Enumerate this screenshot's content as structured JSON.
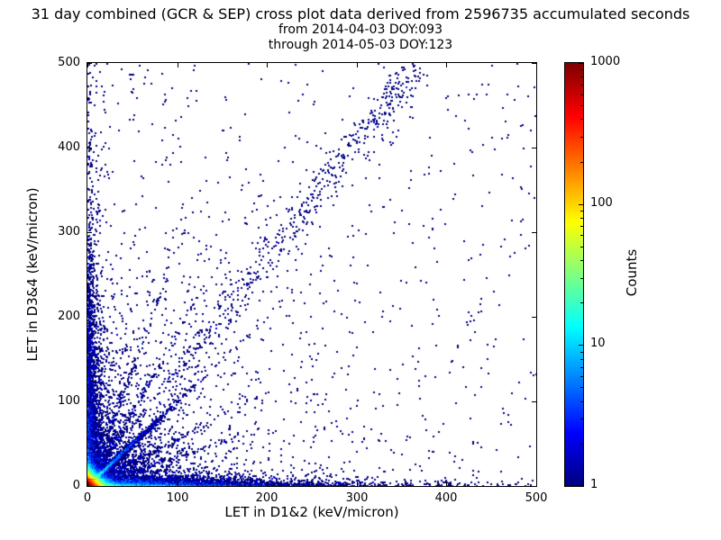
{
  "chart_data": {
    "type": "scatter",
    "title": "31 day combined (GCR & SEP) cross plot data derived from 2596735 accumulated seconds",
    "subtitle1": "from 2014-04-03 DOY:093",
    "subtitle2": "through 2014-05-03 DOY:123",
    "period": {
      "accumulated_seconds": 2596735,
      "from_date": "2014-04-03",
      "from_doy": "093",
      "through_date": "2014-05-03",
      "through_doy": "123"
    },
    "xlabel": "LET in D1&2 (keV/micron)",
    "ylabel": "LET in D3&4 (keV/micron)",
    "xlim": [
      0,
      500
    ],
    "ylim": [
      0,
      500
    ],
    "xticks": [
      0,
      100,
      200,
      300,
      400,
      500
    ],
    "yticks": [
      0,
      100,
      200,
      300,
      400,
      500
    ],
    "grid": false,
    "background_color": "#ffffff",
    "axes_color": "#000000",
    "colorbar": {
      "label": "Counts",
      "scale": "log",
      "min": 1,
      "max": 1000,
      "ticks": [
        1,
        10,
        100,
        1000
      ],
      "ticklabels": [
        "1",
        "10",
        "100",
        "1000"
      ],
      "colormap": "jet",
      "low_color": "#000080",
      "high_color": "#800000"
    },
    "density_model": {
      "seed": 1337,
      "log_max": 3,
      "description": "2D histogram of coincident LET events; hot spot at origin, dense bands along both axes, bright diagonal streak y=x near origin, fainter rays fanning from origin, sparse diagonal band slope~1.35 toward upper right, sparse navy single counts elsewhere",
      "components": [
        {
          "kind": "core",
          "amp": 1500,
          "sx": 4.5,
          "sy": 4.5,
          "extent": 40
        },
        {
          "kind": "exp2d",
          "n": 6000,
          "sx": 75,
          "sy": 3.5
        },
        {
          "kind": "exp2d",
          "n": 2600,
          "sx": 5,
          "sy": 95
        },
        {
          "kind": "exp2d",
          "n": 1800,
          "sx": 40,
          "sy": 40
        },
        {
          "kind": "exp2d",
          "n": 900,
          "sx": 130,
          "sy": 130
        },
        {
          "kind": "exp2d",
          "n": 220,
          "sx": 7,
          "sy": 240
        },
        {
          "kind": "exp2d",
          "n": 280,
          "sx": 220,
          "sy": 4
        },
        {
          "kind": "uniform",
          "n": 450,
          "xmax": 500,
          "ymax": 500
        },
        {
          "kind": "ray",
          "n": 2200,
          "slope": 1.0,
          "scale": 22,
          "jitter": 1.2
        },
        {
          "kind": "ray",
          "n": 250,
          "slope": 1.0,
          "scale": 70,
          "jitter": 3
        },
        {
          "kind": "ray",
          "n": 260,
          "slope": 0.55,
          "scale": 45,
          "jitter": 2
        },
        {
          "kind": "ray",
          "n": 260,
          "slope": 1.8,
          "scale": 45,
          "jitter": 2
        },
        {
          "kind": "ray",
          "n": 200,
          "slope": 0.35,
          "scale": 55,
          "jitter": 1.5
        },
        {
          "kind": "ray",
          "n": 180,
          "slope": 2.8,
          "scale": 40,
          "jitter": 1.5
        },
        {
          "kind": "band",
          "n": 550,
          "slope": 1.35,
          "x0": 90,
          "x1": 370,
          "jitter": 14
        },
        {
          "kind": "blob",
          "n": 28,
          "cx": 333,
          "cy": 440,
          "sx": 8,
          "sy": 25
        }
      ]
    }
  }
}
